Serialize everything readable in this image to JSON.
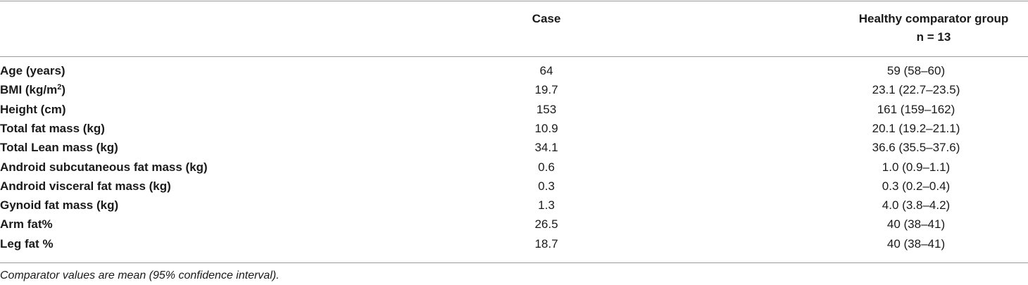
{
  "header": {
    "case": "Case",
    "comparator": "Healthy comparator group",
    "comparator_n": "n = 13"
  },
  "rows": [
    {
      "label": "Age (years)",
      "case": "64",
      "comparator": "59 (58–60)"
    },
    {
      "label": [
        "BMI (kg/m",
        "2",
        ")"
      ],
      "case": "19.7",
      "comparator": "23.1 (22.7–23.5)"
    },
    {
      "label": "Height (cm)",
      "case": "153",
      "comparator": "161 (159–162)"
    },
    {
      "label": "Total fat mass (kg)",
      "case": "10.9",
      "comparator": "20.1 (19.2–21.1)"
    },
    {
      "label": "Total Lean mass (kg)",
      "case": "34.1",
      "comparator": "36.6 (35.5–37.6)"
    },
    {
      "label": "Android subcutaneous fat mass (kg)",
      "case": "0.6",
      "comparator": "1.0 (0.9–1.1)"
    },
    {
      "label": "Android visceral fat mass (kg)",
      "case": "0.3",
      "comparator": "0.3 (0.2–0.4)"
    },
    {
      "label": "Gynoid fat mass (kg)",
      "case": "1.3",
      "comparator": "4.0 (3.8–4.2)"
    },
    {
      "label": "Arm fat%",
      "case": "26.5",
      "comparator": "40 (38–41)"
    },
    {
      "label": "Leg fat %",
      "case": "18.7",
      "comparator": "40 (38–41)"
    }
  ],
  "footnote": "Comparator values are mean (95% confidence interval)."
}
